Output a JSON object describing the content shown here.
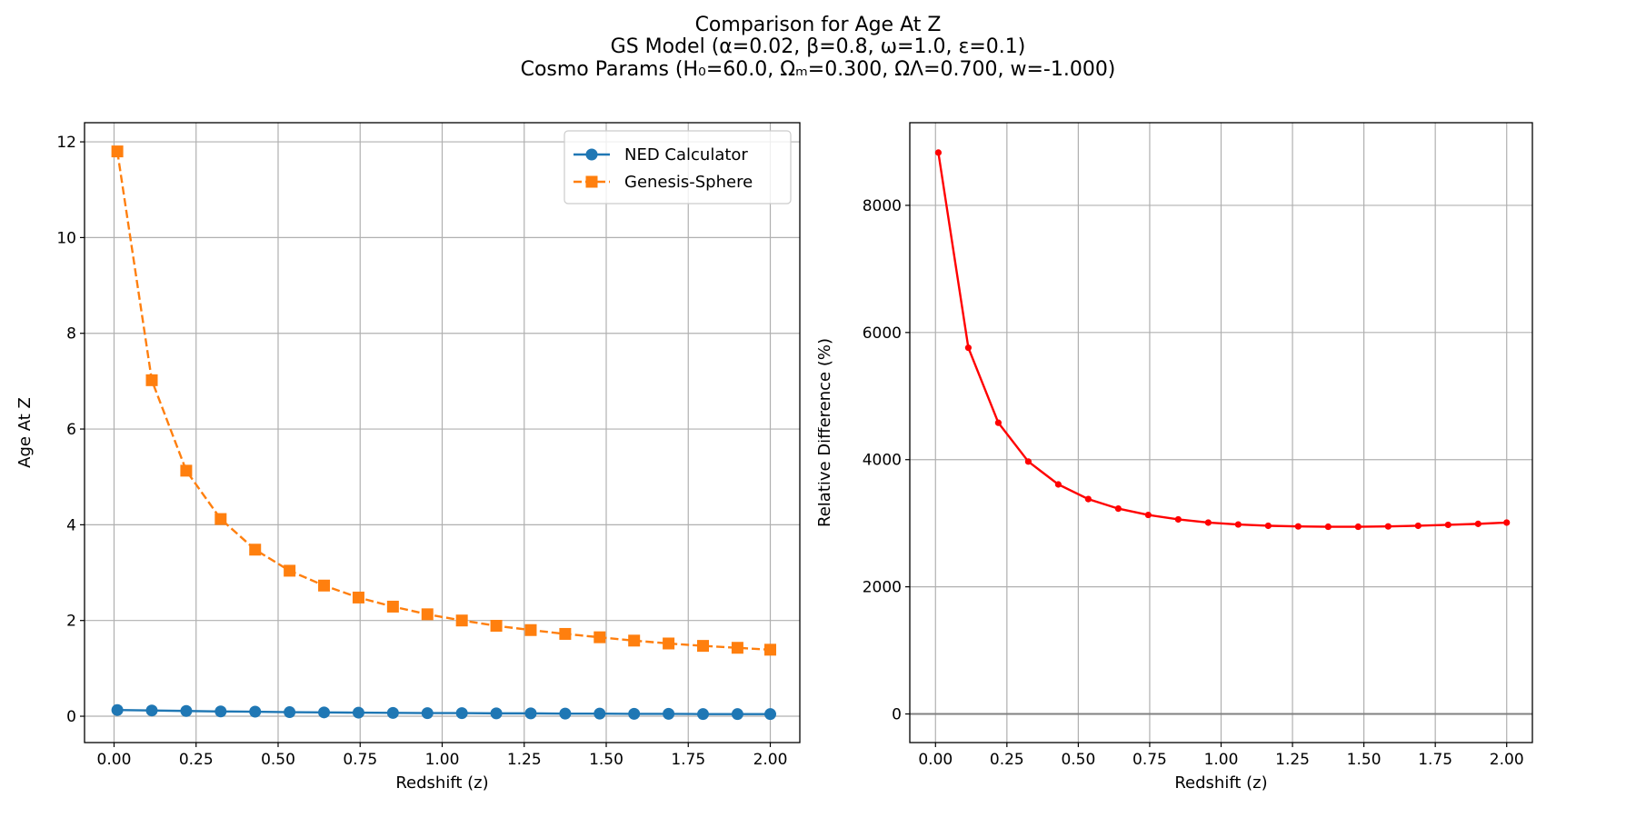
{
  "figure": {
    "title_lines": [
      "Comparison for Age At Z",
      "GS Model (α=0.02, β=0.8, ω=1.0, ε=0.1)",
      "Cosmo Params (H₀=60.0, Ωₘ=0.300, ΩΛ=0.700, w=-1.000)"
    ]
  },
  "colors": {
    "ned": "#1f77b4",
    "genesis": "#ff7f0e",
    "diff": "#ff0000",
    "grid": "#b0b0b0",
    "zero_line": "#808080"
  },
  "chart_data": [
    {
      "type": "line",
      "xlabel": "Redshift (z)",
      "ylabel": "Age At Z",
      "xlim": [
        -0.09,
        2.09
      ],
      "ylim": [
        -0.55,
        12.4
      ],
      "xticks": [
        0.0,
        0.25,
        0.5,
        0.75,
        1.0,
        1.25,
        1.5,
        1.75,
        2.0
      ],
      "xtick_labels": [
        "0.00",
        "0.25",
        "0.50",
        "0.75",
        "1.00",
        "1.25",
        "1.50",
        "1.75",
        "2.00"
      ],
      "yticks": [
        0,
        2,
        4,
        6,
        8,
        10,
        12
      ],
      "ytick_labels": [
        "0",
        "2",
        "4",
        "6",
        "8",
        "10",
        "12"
      ],
      "grid": true,
      "legend": "top-right",
      "x": [
        0.01,
        0.115,
        0.22,
        0.325,
        0.43,
        0.535,
        0.64,
        0.745,
        0.85,
        0.955,
        1.06,
        1.165,
        1.27,
        1.375,
        1.48,
        1.585,
        1.69,
        1.795,
        1.9,
        2.0
      ],
      "series": [
        {
          "name": "NED Calculator",
          "color": "#1f77b4",
          "marker": "circle",
          "style": "solid",
          "values": [
            0.13,
            0.12,
            0.11,
            0.1,
            0.095,
            0.085,
            0.08,
            0.075,
            0.07,
            0.065,
            0.065,
            0.06,
            0.06,
            0.055,
            0.055,
            0.05,
            0.05,
            0.045,
            0.045,
            0.045
          ]
        },
        {
          "name": "Genesis-Sphere",
          "color": "#ff7f0e",
          "marker": "square",
          "style": "dashed",
          "values": [
            11.8,
            7.02,
            5.13,
            4.12,
            3.48,
            3.04,
            2.73,
            2.48,
            2.29,
            2.13,
            2.0,
            1.89,
            1.8,
            1.72,
            1.65,
            1.58,
            1.52,
            1.47,
            1.43,
            1.39
          ]
        }
      ]
    },
    {
      "type": "line",
      "xlabel": "Redshift (z)",
      "ylabel": "Relative Difference (%)",
      "xlim": [
        -0.09,
        2.09
      ],
      "ylim": [
        -450,
        9300
      ],
      "xticks": [
        0.0,
        0.25,
        0.5,
        0.75,
        1.0,
        1.25,
        1.5,
        1.75,
        2.0
      ],
      "xtick_labels": [
        "0.00",
        "0.25",
        "0.50",
        "0.75",
        "1.00",
        "1.25",
        "1.50",
        "1.75",
        "2.00"
      ],
      "yticks": [
        0,
        2000,
        4000,
        6000,
        8000
      ],
      "ytick_labels": [
        "0",
        "2000",
        "4000",
        "6000",
        "8000"
      ],
      "grid": true,
      "zero_line": true,
      "x": [
        0.01,
        0.115,
        0.22,
        0.325,
        0.43,
        0.535,
        0.64,
        0.745,
        0.85,
        0.955,
        1.06,
        1.165,
        1.27,
        1.375,
        1.48,
        1.585,
        1.69,
        1.795,
        1.9,
        2.0
      ],
      "series": [
        {
          "color": "#ff0000",
          "marker": "point",
          "style": "solid",
          "values": [
            8830,
            5760,
            4580,
            3970,
            3610,
            3380,
            3230,
            3130,
            3060,
            3010,
            2980,
            2960,
            2950,
            2945,
            2945,
            2950,
            2960,
            2975,
            2990,
            3010
          ]
        }
      ]
    }
  ]
}
